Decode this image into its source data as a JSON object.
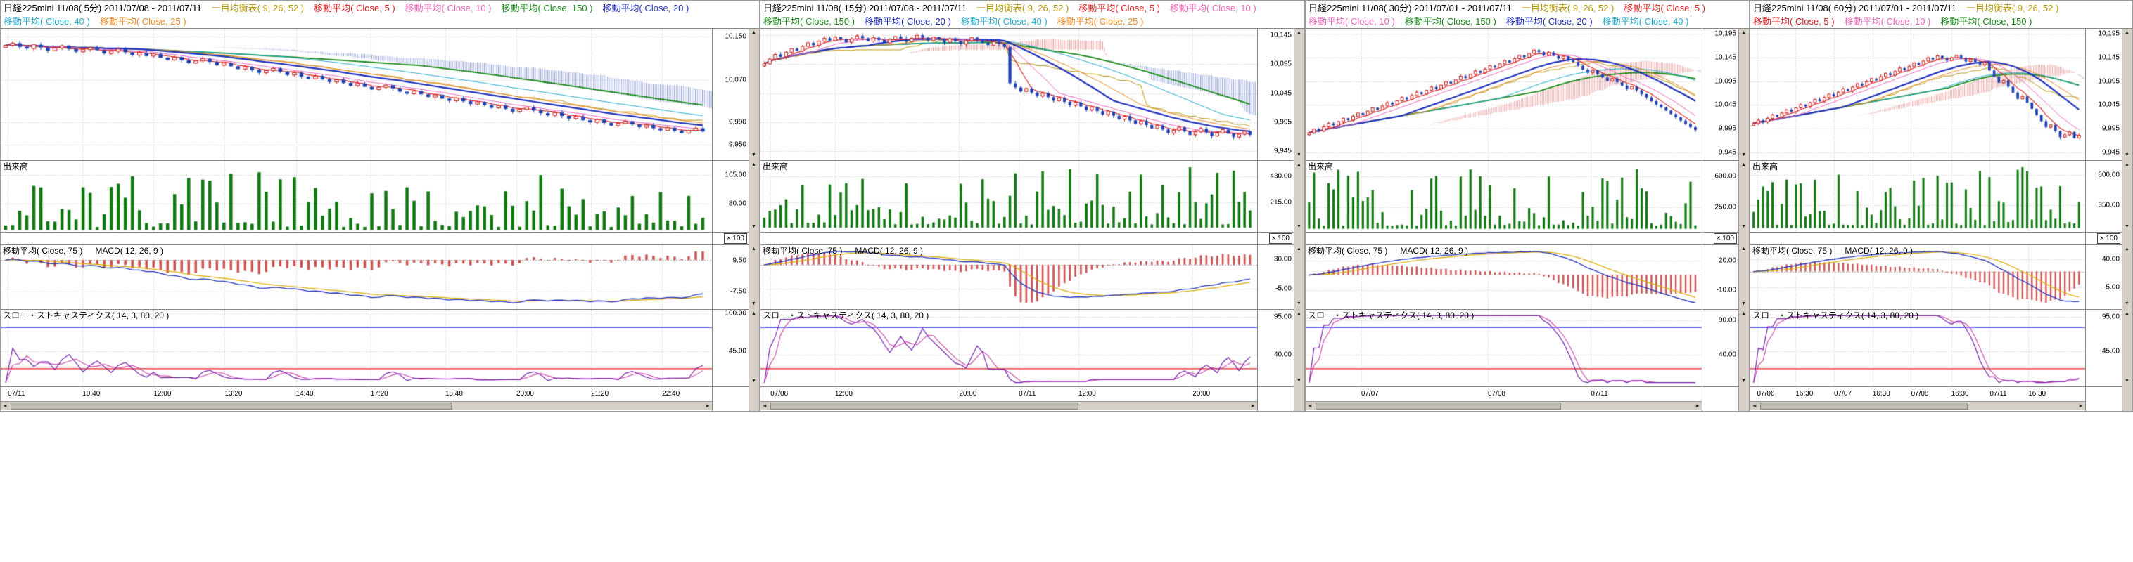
{
  "colors": {
    "ma5": "#dd2222",
    "ma10": "#ee66bb",
    "ma20": "#2233bb",
    "ma25": "#ee8822",
    "ma40": "#22aacc",
    "ma150": "#1a8a1a",
    "ichimoku": "#b8960c",
    "candle_up": "#cc2020",
    "candle_down": "#2040b0",
    "cloud_up": "#e08080",
    "cloud_down": "#8090d0",
    "volume": "#117711",
    "macd_line": "#2233bb",
    "macd_signal": "#ddaa00",
    "macd_hist": "#cc5555",
    "stoch_k": "#7722aa",
    "stoch_d": "#cc44aa",
    "stoch_high": "#3333ee",
    "stoch_low": "#dd2222",
    "grid": "#c4c4c4",
    "axis_text": "#000000"
  },
  "icons": {
    "up": "▲",
    "down": "▼",
    "left": "◄",
    "right": "►"
  },
  "legend": [
    {
      "label": "一目均衡表( 9, 26, 52 )",
      "series": "ichimoku"
    },
    {
      "label": "移動平均( Close, 5 )",
      "series": "ma5"
    },
    {
      "label": "移動平均( Close, 10 )",
      "series": "ma10"
    },
    {
      "label": "移動平均( Close, 150 )",
      "series": "ma150"
    },
    {
      "label": "移動平均( Close, 20 )",
      "series": "ma20"
    },
    {
      "label": "移動平均( Close, 40 )",
      "series": "ma40"
    },
    {
      "label": "移動平均( Close, 25 )",
      "series": "ma25"
    }
  ],
  "pane_labels": {
    "volume": "出来高",
    "scale": "× 100",
    "macd_ma": "移動平均( Close, 75 )",
    "macd": "MACD( 12, 26, 9 )",
    "stoch": "スロー・ストキャスティクス( 14, 3, 80, 20 )"
  },
  "panels": [
    {
      "title": "日経225mini 11/08( 5分) 2011/07/08 - 2011/07/11"
    },
    {
      "title": "日経225mini 11/08( 15分) 2011/07/08 - 2011/07/11"
    },
    {
      "title": "日経225mini 11/08( 30分) 2011/07/01 - 2011/07/11"
    },
    {
      "title": "日経225mini 11/08( 60分) 2011/07/01 - 2011/07/11"
    }
  ],
  "chart_data": [
    {
      "type": "candlestick",
      "timeframe": "5分",
      "x_ticks": [
        {
          "label": "07/11",
          "pos": 0.01
        },
        {
          "label": "10:40",
          "pos": 0.115
        },
        {
          "label": "12:00",
          "pos": 0.215
        },
        {
          "label": "13:20",
          "pos": 0.315
        },
        {
          "label": "14:40",
          "pos": 0.415
        },
        {
          "label": "17:20",
          "pos": 0.52
        },
        {
          "label": "18:40",
          "pos": 0.625
        },
        {
          "label": "20:00",
          "pos": 0.725
        },
        {
          "label": "21:20",
          "pos": 0.83
        },
        {
          "label": "22:40",
          "pos": 0.93
        }
      ],
      "price_ticks": [
        {
          "label": "10,150",
          "pos": 0.06
        },
        {
          "label": "10,070",
          "pos": 0.39
        },
        {
          "label": "9,990",
          "pos": 0.71
        },
        {
          "label": "9,950",
          "pos": 0.88
        }
      ],
      "volume_ticks": [
        {
          "label": "165.00",
          "pos": 0.2
        },
        {
          "label": "80.00",
          "pos": 0.6
        }
      ],
      "macd_ticks": [
        {
          "label": "9.50",
          "pos": 0.24
        },
        {
          "label": "-7.50",
          "pos": 0.72
        }
      ],
      "stoch_ticks": [
        {
          "label": "100.00",
          "pos": 0.05
        },
        {
          "label": "45.00",
          "pos": 0.545
        }
      ],
      "closes": [
        10134,
        10138,
        10131,
        10128,
        10135,
        10130,
        10124,
        10129,
        10133,
        10127,
        10122,
        10126,
        10130,
        10125,
        10119,
        10123,
        10127,
        10121,
        10116,
        10120,
        10114,
        10118,
        10111,
        10107,
        10112,
        10106,
        10101,
        10105,
        10109,
        10103,
        10097,
        10101,
        10095,
        10090,
        10094,
        10088,
        10083,
        10087,
        10091,
        10085,
        10079,
        10083,
        10076,
        10072,
        10077,
        10071,
        10066,
        10070,
        10064,
        10059,
        10063,
        10057,
        10052,
        10056,
        10060,
        10054,
        10048,
        10044,
        10049,
        10043,
        10038,
        10042,
        10035,
        10031,
        10036,
        10030,
        10025,
        10029,
        10023,
        10018,
        10022,
        10016,
        10011,
        10015,
        10019,
        10013,
        10008,
        10004,
        10009,
        10003,
        9998,
        10002,
        9995,
        9991,
        9996,
        9990,
        9985,
        9989,
        9993,
        9987,
        9982,
        9986,
        9980,
        9976,
        9981,
        9975,
        9971,
        9976,
        9980,
        9974
      ]
    },
    {
      "type": "candlestick",
      "timeframe": "15分",
      "x_ticks": [
        {
          "label": "07/08",
          "pos": 0.02
        },
        {
          "label": "12:00",
          "pos": 0.15
        },
        {
          "label": "20:00",
          "pos": 0.4
        },
        {
          "label": "07/11",
          "pos": 0.52
        },
        {
          "label": "12:00",
          "pos": 0.64
        },
        {
          "label": "20:00",
          "pos": 0.87
        }
      ],
      "price_ticks": [
        {
          "label": "10,145",
          "pos": 0.05
        },
        {
          "label": "10,095",
          "pos": 0.27
        },
        {
          "label": "10,045",
          "pos": 0.49
        },
        {
          "label": "9,995",
          "pos": 0.71
        },
        {
          "label": "9,945",
          "pos": 0.93
        }
      ],
      "volume_ticks": [
        {
          "label": "430.00",
          "pos": 0.22
        },
        {
          "label": "215.00",
          "pos": 0.58
        }
      ],
      "macd_ticks": [
        {
          "label": "30.00",
          "pos": 0.22
        },
        {
          "label": "-5.00",
          "pos": 0.68
        }
      ],
      "stoch_ticks": [
        {
          "label": "95.00",
          "pos": 0.095
        },
        {
          "label": "40.00",
          "pos": 0.59
        }
      ],
      "closes": [
        10096,
        10104,
        10112,
        10108,
        10116,
        10122,
        10118,
        10126,
        10132,
        10128,
        10135,
        10140,
        10136,
        10142,
        10138,
        10133,
        10139,
        10144,
        10140,
        10135,
        10141,
        10137,
        10132,
        10138,
        10143,
        10139,
        10134,
        10140,
        10145,
        10141,
        10136,
        10142,
        10138,
        10133,
        10139,
        10135,
        10130,
        10136,
        10141,
        10137,
        10132,
        10128,
        10134,
        10130,
        10125,
        10062,
        10055,
        10048,
        10053,
        10046,
        10040,
        10045,
        10038,
        10032,
        10037,
        10030,
        10024,
        10029,
        10022,
        10016,
        10021,
        10014,
        10008,
        10013,
        10006,
        10000,
        10005,
        9998,
        9992,
        9997,
        9990,
        9984,
        9989,
        9982,
        9976,
        9981,
        9986,
        9979,
        9973,
        9978,
        9984,
        9977,
        9971,
        9976,
        9982,
        9975,
        9969,
        9974,
        9979,
        9973
      ]
    },
    {
      "type": "candlestick",
      "timeframe": "30分",
      "x_ticks": [
        {
          "label": "07/07",
          "pos": 0.14
        },
        {
          "label": "07/08",
          "pos": 0.46
        },
        {
          "label": "07/11",
          "pos": 0.72
        }
      ],
      "price_ticks": [
        {
          "label": "10,195",
          "pos": 0.04
        },
        {
          "label": "10,145",
          "pos": 0.22
        },
        {
          "label": "10,095",
          "pos": 0.4
        },
        {
          "label": "10,045",
          "pos": 0.58
        },
        {
          "label": "9,995",
          "pos": 0.76
        },
        {
          "label": "9,945",
          "pos": 0.94
        }
      ],
      "volume_ticks": [
        {
          "label": "600.00",
          "pos": 0.22
        },
        {
          "label": "250.00",
          "pos": 0.65
        }
      ],
      "macd_ticks": [
        {
          "label": "20.00",
          "pos": 0.24
        },
        {
          "label": "-10.00",
          "pos": 0.7
        }
      ],
      "stoch_ticks": [
        {
          "label": "90.00",
          "pos": 0.14
        },
        {
          "label": "40.00",
          "pos": 0.59
        }
      ],
      "closes": [
        9986,
        9994,
        9990,
        9999,
        10006,
        10002,
        10010,
        10017,
        10013,
        10021,
        10028,
        10024,
        10032,
        10039,
        10035,
        10043,
        10050,
        10046,
        10054,
        10061,
        10057,
        10065,
        10072,
        10068,
        10076,
        10083,
        10079,
        10087,
        10094,
        10090,
        10098,
        10106,
        10102,
        10110,
        10117,
        10113,
        10121,
        10128,
        10124,
        10132,
        10139,
        10135,
        10143,
        10150,
        10146,
        10154,
        10161,
        10157,
        10150,
        10156,
        10149,
        10143,
        10148,
        10141,
        10136,
        10128,
        10120,
        10113,
        10118,
        10110,
        10103,
        10096,
        10101,
        10093,
        10086,
        10079,
        10084,
        10076,
        10068,
        10061,
        10053,
        10046,
        10040,
        10033,
        10026,
        10019,
        10012,
        10005,
        9998,
        9992
      ]
    },
    {
      "type": "candlestick",
      "timeframe": "60分",
      "x_ticks": [
        {
          "label": "07/06",
          "pos": 0.02
        },
        {
          "label": "16:30",
          "pos": 0.135
        },
        {
          "label": "07/07",
          "pos": 0.25
        },
        {
          "label": "16:30",
          "pos": 0.365
        },
        {
          "label": "07/08",
          "pos": 0.48
        },
        {
          "label": "16:30",
          "pos": 0.6
        },
        {
          "label": "07/11",
          "pos": 0.715
        },
        {
          "label": "16:30",
          "pos": 0.83
        }
      ],
      "price_ticks": [
        {
          "label": "10,195",
          "pos": 0.04
        },
        {
          "label": "10,145",
          "pos": 0.22
        },
        {
          "label": "10,095",
          "pos": 0.4
        },
        {
          "label": "10,045",
          "pos": 0.58
        },
        {
          "label": "9,995",
          "pos": 0.76
        },
        {
          "label": "9,945",
          "pos": 0.94
        }
      ],
      "volume_ticks": [
        {
          "label": "800.00",
          "pos": 0.2
        },
        {
          "label": "350.00",
          "pos": 0.62
        }
      ],
      "macd_ticks": [
        {
          "label": "40.00",
          "pos": 0.22
        },
        {
          "label": "-5.00",
          "pos": 0.66
        }
      ],
      "stoch_ticks": [
        {
          "label": "95.00",
          "pos": 0.095
        },
        {
          "label": "45.00",
          "pos": 0.545
        }
      ],
      "closes": [
        10006,
        10013,
        10009,
        10017,
        10024,
        10020,
        10028,
        10035,
        10031,
        10039,
        10046,
        10042,
        10050,
        10057,
        10053,
        10061,
        10068,
        10064,
        10072,
        10079,
        10075,
        10083,
        10090,
        10086,
        10094,
        10101,
        10097,
        10105,
        10112,
        10108,
        10116,
        10123,
        10119,
        10127,
        10134,
        10130,
        10138,
        10145,
        10141,
        10149,
        10144,
        10139,
        10145,
        10150,
        10143,
        10137,
        10142,
        10136,
        10130,
        10135,
        10118,
        10105,
        10092,
        10097,
        10084,
        10071,
        10058,
        10063,
        10050,
        10037,
        10024,
        10011,
        9998,
        10003,
        9990,
        9977,
        9982,
        9988,
        9975,
        9981
      ]
    }
  ]
}
